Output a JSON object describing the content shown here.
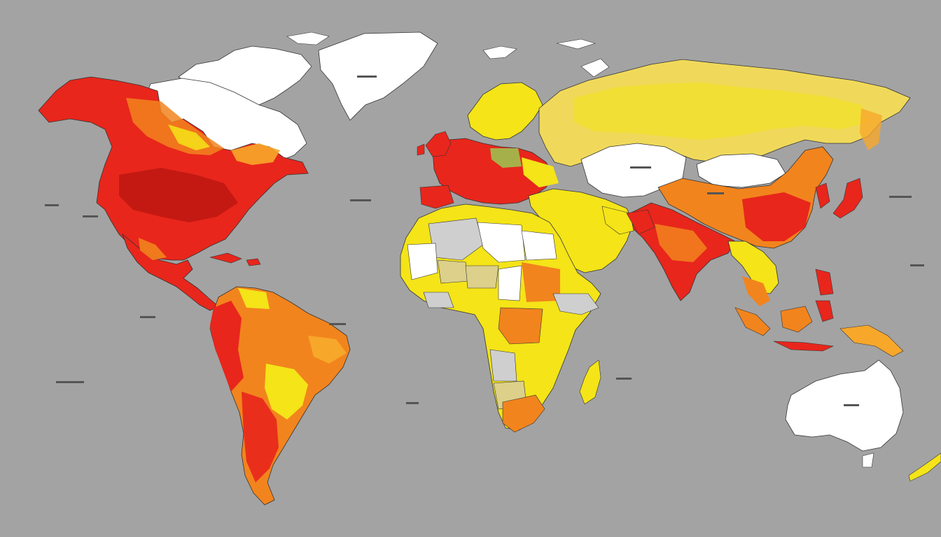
{
  "map": {
    "type": "choropleth-world-map",
    "background_color": "#a3a3a3",
    "palette": {
      "red": "#e8261c",
      "dark_red": "#b5140f",
      "orange": "#f2841d",
      "light_orange": "#f7a72a",
      "yellow": "#f4e418",
      "pale_yellow": "#f0d95a",
      "khaki": "#dcd08a",
      "white": "#ffffff",
      "light_gray": "#cfcfcf",
      "olive": "#a6b04a"
    },
    "legend": null,
    "labels_legible": false,
    "regions": [
      {
        "name": "north-america",
        "color": "red"
      },
      {
        "name": "canada-north",
        "color": "white"
      },
      {
        "name": "greenland",
        "color": "white"
      },
      {
        "name": "central-america",
        "color": "red"
      },
      {
        "name": "south-america",
        "color": "orange"
      },
      {
        "name": "europe",
        "color": "red"
      },
      {
        "name": "scandinavia",
        "color": "yellow"
      },
      {
        "name": "russia",
        "color": "pale_yellow"
      },
      {
        "name": "central-asia",
        "color": "white"
      },
      {
        "name": "mongolia",
        "color": "white"
      },
      {
        "name": "china",
        "color": "orange"
      },
      {
        "name": "india",
        "color": "red"
      },
      {
        "name": "middle-east",
        "color": "yellow"
      },
      {
        "name": "africa",
        "color": "yellow"
      },
      {
        "name": "southeast-asia",
        "color": "orange"
      },
      {
        "name": "japan",
        "color": "red"
      },
      {
        "name": "australia",
        "color": "white"
      }
    ]
  }
}
